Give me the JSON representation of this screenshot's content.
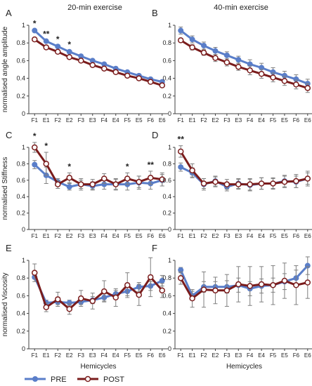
{
  "column_titles": [
    "20-min exercise",
    "40-min exercise"
  ],
  "x_axis_title": "Hemicycles",
  "legend": [
    "PRE",
    "POST"
  ],
  "colors": {
    "pre": "#5a7ec9",
    "post": "#7a1c1c",
    "error_bar": "#7f7f7f",
    "axis": "#404040"
  },
  "chart_data": [
    {
      "panel": "A",
      "type": "line",
      "ylabel": "normalised angle amplitude",
      "ylim": [
        0,
        1
      ],
      "yticks": [
        "0",
        "0.2",
        "0.4",
        "0.6",
        "0.8",
        "1"
      ],
      "categories": [
        "F1",
        "E1",
        "F2",
        "E2",
        "F3",
        "E3",
        "F4",
        "E4",
        "F5",
        "E5",
        "F6",
        "E6"
      ],
      "series": [
        {
          "name": "PRE",
          "values": [
            0.94,
            0.82,
            0.76,
            0.7,
            0.65,
            0.6,
            0.56,
            0.51,
            0.47,
            0.43,
            0.39,
            0.36
          ],
          "errors": [
            0.01,
            0.01,
            0.01,
            0.01,
            0.01,
            0.01,
            0.01,
            0.01,
            0.01,
            0.01,
            0.01,
            0.01
          ]
        },
        {
          "name": "POST",
          "values": [
            0.84,
            0.75,
            0.7,
            0.64,
            0.6,
            0.55,
            0.51,
            0.47,
            0.43,
            0.4,
            0.36,
            0.32
          ],
          "errors": [
            0.01,
            0.01,
            0.01,
            0.01,
            0.01,
            0.01,
            0.01,
            0.01,
            0.01,
            0.01,
            0.01,
            0.01
          ]
        }
      ],
      "annotations": [
        {
          "label": "*",
          "index": 0
        },
        {
          "label": "**",
          "index": 1
        },
        {
          "label": "*",
          "index": 2
        },
        {
          "label": "*",
          "index": 3
        }
      ]
    },
    {
      "panel": "B",
      "type": "line",
      "ylabel": "",
      "ylim": [
        0,
        1
      ],
      "yticks": [
        "0",
        "0.2",
        "0.4",
        "0.6",
        "0.8",
        "1"
      ],
      "categories": [
        "F1",
        "E1",
        "F2",
        "E2",
        "F3",
        "E3",
        "F4",
        "E4",
        "F5",
        "E5",
        "F6",
        "E6"
      ],
      "series": [
        {
          "name": "PRE",
          "values": [
            0.94,
            0.84,
            0.77,
            0.71,
            0.66,
            0.61,
            0.56,
            0.52,
            0.47,
            0.43,
            0.39,
            0.34
          ],
          "errors": [
            0.04,
            0.04,
            0.04,
            0.04,
            0.04,
            0.04,
            0.05,
            0.05,
            0.05,
            0.05,
            0.05,
            0.05
          ]
        },
        {
          "name": "POST",
          "values": [
            0.83,
            0.75,
            0.69,
            0.63,
            0.58,
            0.53,
            0.49,
            0.45,
            0.41,
            0.37,
            0.33,
            0.29
          ],
          "errors": [
            0.02,
            0.03,
            0.03,
            0.04,
            0.04,
            0.04,
            0.05,
            0.05,
            0.05,
            0.05,
            0.05,
            0.05
          ]
        }
      ],
      "annotations": []
    },
    {
      "panel": "C",
      "type": "line",
      "ylabel": "normalised Stiffness",
      "ylim": [
        0,
        1
      ],
      "yticks": [
        "0",
        "0.2",
        "0.4",
        "0.6",
        "0.8",
        "1"
      ],
      "categories": [
        "F1",
        "E1",
        "F2",
        "E2",
        "F3",
        "E3",
        "F4",
        "E4",
        "F5",
        "E5",
        "F6",
        "E6"
      ],
      "series": [
        {
          "name": "PRE",
          "values": [
            0.79,
            0.66,
            0.58,
            0.52,
            0.55,
            0.53,
            0.55,
            0.55,
            0.55,
            0.57,
            0.56,
            0.6
          ],
          "errors": [
            0.05,
            0.1,
            0.04,
            0.04,
            0.05,
            0.05,
            0.06,
            0.07,
            0.07,
            0.08,
            0.07,
            0.07
          ]
        },
        {
          "name": "POST",
          "values": [
            1.0,
            0.8,
            0.55,
            0.63,
            0.55,
            0.55,
            0.62,
            0.55,
            0.62,
            0.58,
            0.63,
            0.61
          ],
          "errors": [
            0.06,
            0.14,
            0.05,
            0.06,
            0.07,
            0.06,
            0.06,
            0.06,
            0.07,
            0.07,
            0.08,
            0.08
          ]
        }
      ],
      "annotations": [
        {
          "label": "*",
          "index": 0
        },
        {
          "label": "*",
          "index": 1
        },
        {
          "label": "*",
          "index": 3
        },
        {
          "label": "*",
          "index": 8
        },
        {
          "label": "**",
          "index": 10
        }
      ]
    },
    {
      "panel": "D",
      "type": "line",
      "ylabel": "",
      "ylim": [
        0,
        1
      ],
      "yticks": [
        "0",
        "0.2",
        "0.4",
        "0.6",
        "0.8",
        "1"
      ],
      "categories": [
        "F1",
        "E1",
        "F2",
        "E2",
        "F3",
        "E3",
        "F4",
        "E4",
        "F5",
        "E5",
        "F6",
        "E6"
      ],
      "series": [
        {
          "name": "PRE",
          "values": [
            0.76,
            0.69,
            0.55,
            0.59,
            0.52,
            0.56,
            0.54,
            0.56,
            0.56,
            0.59,
            0.58,
            0.62
          ],
          "errors": [
            0.05,
            0.06,
            0.07,
            0.06,
            0.05,
            0.06,
            0.07,
            0.07,
            0.06,
            0.07,
            0.07,
            0.07
          ]
        },
        {
          "name": "POST",
          "values": [
            0.95,
            0.72,
            0.56,
            0.58,
            0.55,
            0.55,
            0.55,
            0.56,
            0.56,
            0.58,
            0.59,
            0.62
          ],
          "errors": [
            0.07,
            0.08,
            0.06,
            0.06,
            0.06,
            0.06,
            0.07,
            0.07,
            0.07,
            0.07,
            0.08,
            0.09
          ]
        }
      ],
      "annotations": [
        {
          "label": "**",
          "index": 0
        }
      ]
    },
    {
      "panel": "E",
      "type": "line",
      "ylabel": "normalised Viscosity",
      "ylim": [
        0,
        1
      ],
      "yticks": [
        "0",
        "0.2",
        "0.4",
        "0.6",
        "0.8",
        "1"
      ],
      "categories": [
        "F1",
        "E1",
        "F2",
        "E2",
        "F3",
        "E3",
        "F4",
        "E4",
        "F5",
        "E5",
        "F6",
        "E6"
      ],
      "series": [
        {
          "name": "PRE",
          "values": [
            0.81,
            0.52,
            0.53,
            0.52,
            0.53,
            0.55,
            0.58,
            0.62,
            0.65,
            0.7,
            0.71,
            0.77
          ],
          "errors": [
            0.02,
            0.03,
            0.03,
            0.03,
            0.03,
            0.04,
            0.04,
            0.04,
            0.05,
            0.05,
            0.05,
            0.06
          ]
        },
        {
          "name": "POST",
          "values": [
            0.86,
            0.47,
            0.56,
            0.45,
            0.57,
            0.54,
            0.65,
            0.58,
            0.72,
            0.61,
            0.81,
            0.66
          ],
          "errors": [
            0.1,
            0.05,
            0.08,
            0.06,
            0.09,
            0.09,
            0.12,
            0.1,
            0.14,
            0.12,
            0.22,
            0.08
          ]
        }
      ],
      "annotations": []
    },
    {
      "panel": "F",
      "type": "line",
      "ylabel": "",
      "ylim": [
        0,
        1
      ],
      "yticks": [
        "0",
        "0.2",
        "0.4",
        "0.6",
        "0.8",
        "1"
      ],
      "categories": [
        "F1",
        "E1",
        "F2",
        "E2",
        "F3",
        "E3",
        "F4",
        "E4",
        "F5",
        "E5",
        "F6",
        "E6"
      ],
      "series": [
        {
          "name": "PRE",
          "values": [
            0.89,
            0.6,
            0.7,
            0.7,
            0.7,
            0.72,
            0.68,
            0.71,
            0.72,
            0.76,
            0.8,
            0.94
          ],
          "errors": [
            0.03,
            0.05,
            0.06,
            0.06,
            0.07,
            0.08,
            0.08,
            0.08,
            0.08,
            0.09,
            0.09,
            0.1
          ]
        },
        {
          "name": "POST",
          "values": [
            0.8,
            0.57,
            0.67,
            0.66,
            0.66,
            0.73,
            0.71,
            0.73,
            0.72,
            0.77,
            0.72,
            0.75
          ],
          "errors": [
            0.07,
            0.1,
            0.2,
            0.15,
            0.18,
            0.2,
            0.22,
            0.2,
            0.22,
            0.2,
            0.22,
            0.18
          ]
        }
      ],
      "annotations": []
    }
  ]
}
